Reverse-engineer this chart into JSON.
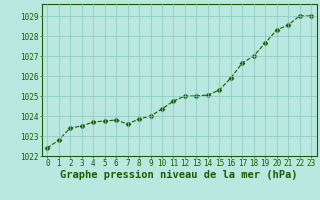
{
  "x": [
    0,
    1,
    2,
    3,
    4,
    5,
    6,
    7,
    8,
    9,
    10,
    11,
    12,
    13,
    14,
    15,
    16,
    17,
    18,
    19,
    20,
    21,
    22,
    23
  ],
  "y": [
    1022.4,
    1022.8,
    1023.4,
    1023.5,
    1023.7,
    1023.75,
    1023.8,
    1023.6,
    1023.85,
    1024.0,
    1024.35,
    1024.75,
    1025.0,
    1025.0,
    1025.05,
    1025.3,
    1025.9,
    1026.65,
    1027.0,
    1027.65,
    1028.3,
    1028.55,
    1029.0,
    1029.0
  ],
  "line_color": "#1a5c00",
  "marker_color": "#1a5c00",
  "bg_color": "#b8e8e0",
  "grid_color": "#88c8c0",
  "xlabel": "Graphe pression niveau de la mer (hPa)",
  "ylim": [
    1022,
    1029.6
  ],
  "xlim": [
    -0.5,
    23.5
  ],
  "yticks": [
    1022,
    1023,
    1024,
    1025,
    1026,
    1027,
    1028,
    1029
  ],
  "xticks": [
    0,
    1,
    2,
    3,
    4,
    5,
    6,
    7,
    8,
    9,
    10,
    11,
    12,
    13,
    14,
    15,
    16,
    17,
    18,
    19,
    20,
    21,
    22,
    23
  ],
  "tick_fontsize": 5.5,
  "xlabel_fontsize": 7.5,
  "line_width": 0.8,
  "marker_size": 2.5
}
